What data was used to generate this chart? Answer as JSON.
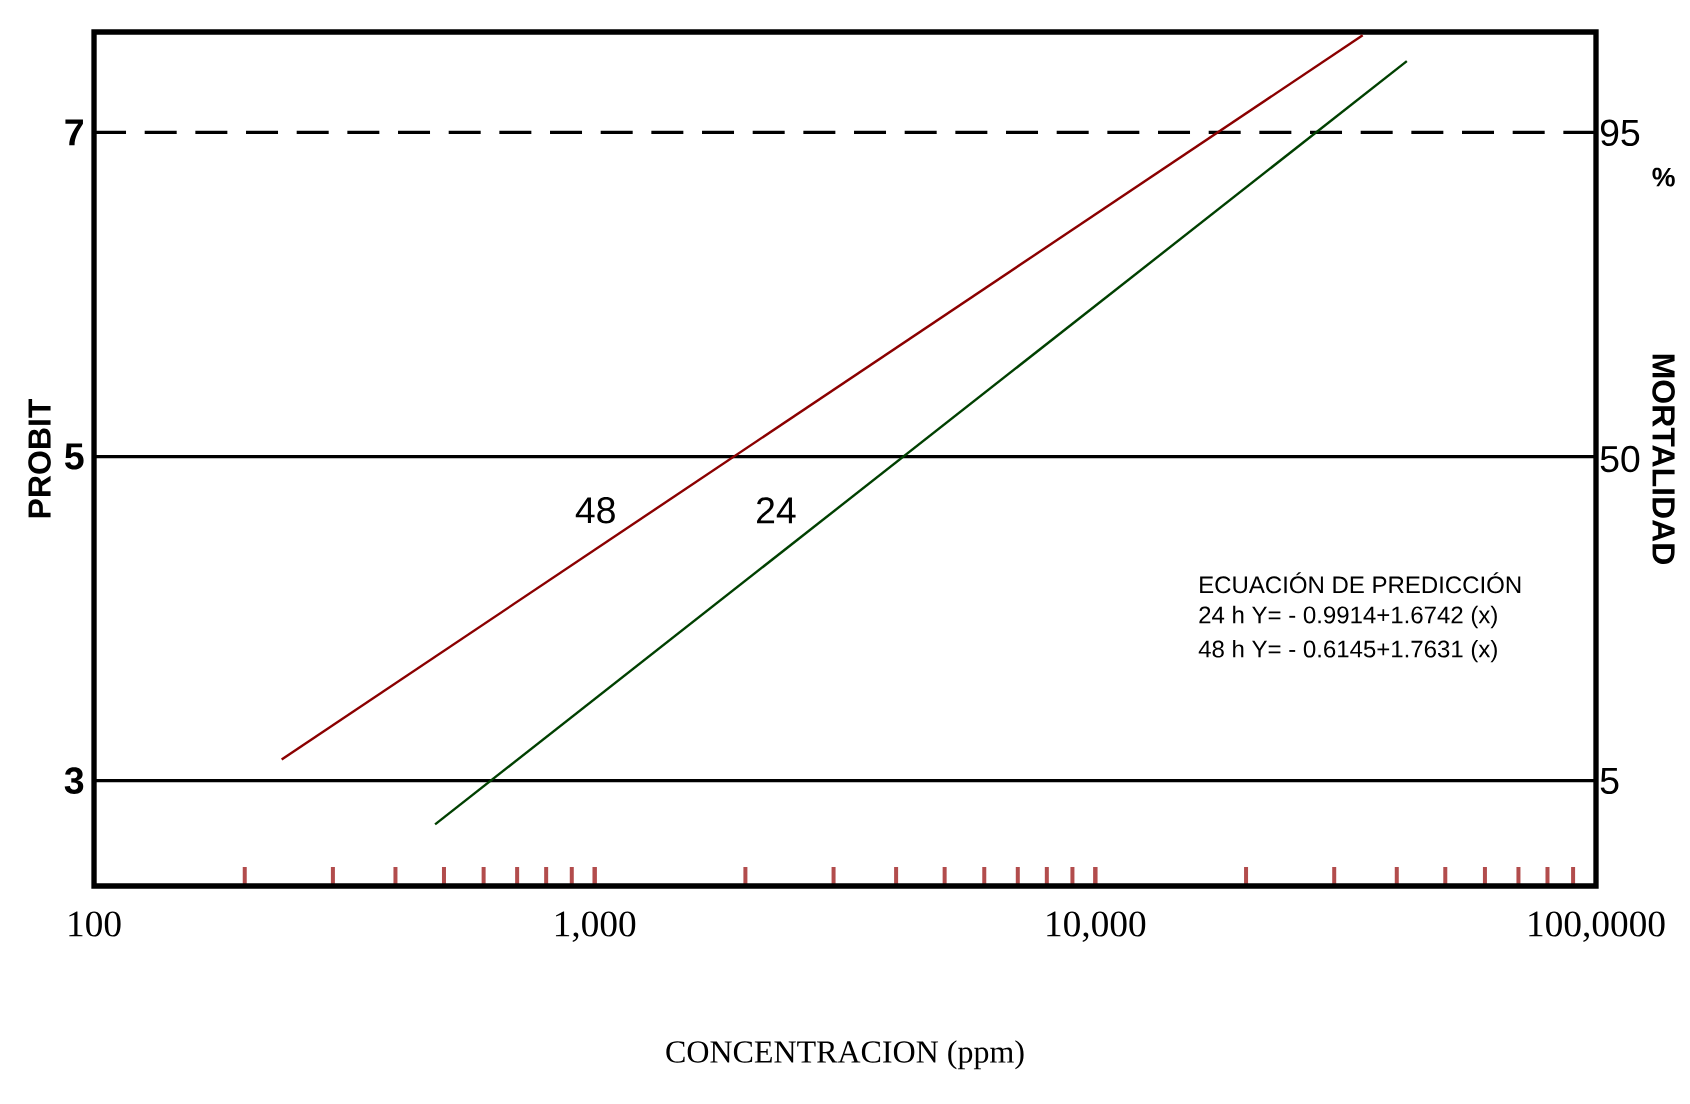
{
  "chart_data": {
    "type": "line",
    "xlabel": "CONCENTRACION (ppm)",
    "ylabel": "PROBIT",
    "y2label": "MORTALIDAD",
    "log": "x",
    "xlim": [
      100,
      100000
    ],
    "xticks": [
      {
        "value": 100,
        "label": "100"
      },
      {
        "value": 1000,
        "label": "1,000"
      },
      {
        "value": 10000,
        "label": "10,000"
      },
      {
        "value": 100000,
        "label": "100,0000"
      }
    ],
    "ylim": [
      2.35,
      7.62
    ],
    "yticks": [
      3,
      5,
      7
    ],
    "series": [
      {
        "color": "#8b0000",
        "x": [
          237,
          34200
        ],
        "values": [
          3.13,
          7.6
        ]
      },
      {
        "color": "#004000",
        "x": [
          480,
          41900
        ],
        "values": [
          2.73,
          7.44
        ]
      }
    ],
    "ref_lines": [
      {
        "axis": "y",
        "value": 7,
        "line_style": "dashed",
        "color": "#000000"
      },
      {
        "axis": "y",
        "value": 5,
        "line_style": "solid",
        "color": "#000000"
      },
      {
        "axis": "y",
        "value": 3,
        "line_style": "solid",
        "color": "#000000"
      }
    ],
    "annotations": [
      "48",
      "24",
      "ECUACIÓN DE PREDICCIÓN",
      "24 h Y= - 0.9914+1.6742  (x)",
      "48 h Y= - 0.6145+1.7631  (x)",
      "%",
      "95",
      "50",
      "5"
    ]
  }
}
